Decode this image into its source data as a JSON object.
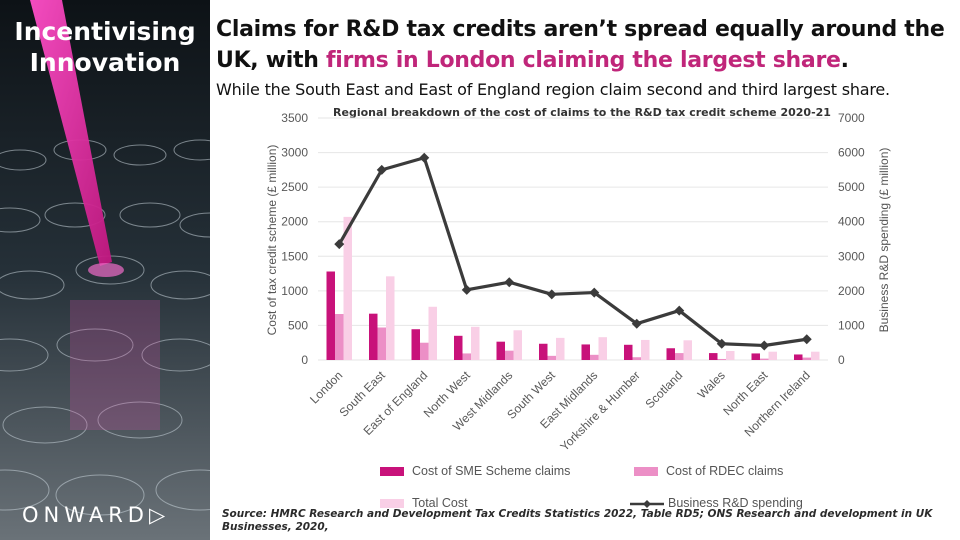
{
  "sidebar": {
    "title_line1": "Incentivising",
    "title_line2": "Innovation",
    "logo": "ONWARD▷"
  },
  "header": {
    "headline_start": "Claims for R&D tax credits aren’t spread equally around the UK, with ",
    "headline_highlight": "firms in London claiming the largest share",
    "headline_end": ".",
    "subheadline": "While the South East and East of England region claim second and third largest share."
  },
  "colors": {
    "sme": "#c8127a",
    "rdec": "#ec8fc6",
    "total": "#f9cfe6",
    "line": "#3b3b3b",
    "accent": "#c0267a"
  },
  "chart_data": {
    "type": "bar",
    "title": "Regional breakdown of the cost of claims to the R&D tax credit scheme 2020-21",
    "ylabel": "Cost of tax credit scheme (£ million)",
    "y2label": "Business R&D spending (£ million)",
    "ylim": [
      0,
      3500
    ],
    "y2lim": [
      0,
      7000
    ],
    "yticks": [
      "0",
      "500",
      "1000",
      "1500",
      "2000",
      "2500",
      "3000",
      "3500"
    ],
    "y2ticks": [
      "0",
      "1000",
      "2000",
      "3000",
      "4000",
      "5000",
      "6000",
      "7000"
    ],
    "categories": [
      "London",
      "South East",
      "East of England",
      "North West",
      "West Midlands",
      "South West",
      "East Midlands",
      "Yorkshire & Humber",
      "Scotland",
      "Wales",
      "North East",
      "Northern Ireland"
    ],
    "series": [
      {
        "name": "Cost of SME Scheme claims",
        "kind": "bar",
        "values": [
          1280,
          670,
          445,
          350,
          265,
          235,
          225,
          220,
          170,
          100,
          95,
          80
        ]
      },
      {
        "name": "Cost of RDEC claims",
        "kind": "bar",
        "values": [
          665,
          470,
          250,
          95,
          135,
          60,
          75,
          40,
          100,
          15,
          20,
          35
        ]
      },
      {
        "name": "Total Cost",
        "kind": "bar",
        "values": [
          2070,
          1210,
          770,
          480,
          430,
          320,
          330,
          290,
          285,
          130,
          120,
          120
        ]
      },
      {
        "name": "Business R&D spending",
        "kind": "line",
        "axis": "right",
        "values": [
          3350,
          5500,
          5850,
          2030,
          2250,
          1900,
          1950,
          1050,
          1430,
          470,
          420,
          600
        ]
      }
    ]
  },
  "footer": {
    "source": "Source: HMRC Research and Development Tax Credits Statistics 2022, Table RD5; ONS Research and development in UK Businesses, 2020,"
  }
}
